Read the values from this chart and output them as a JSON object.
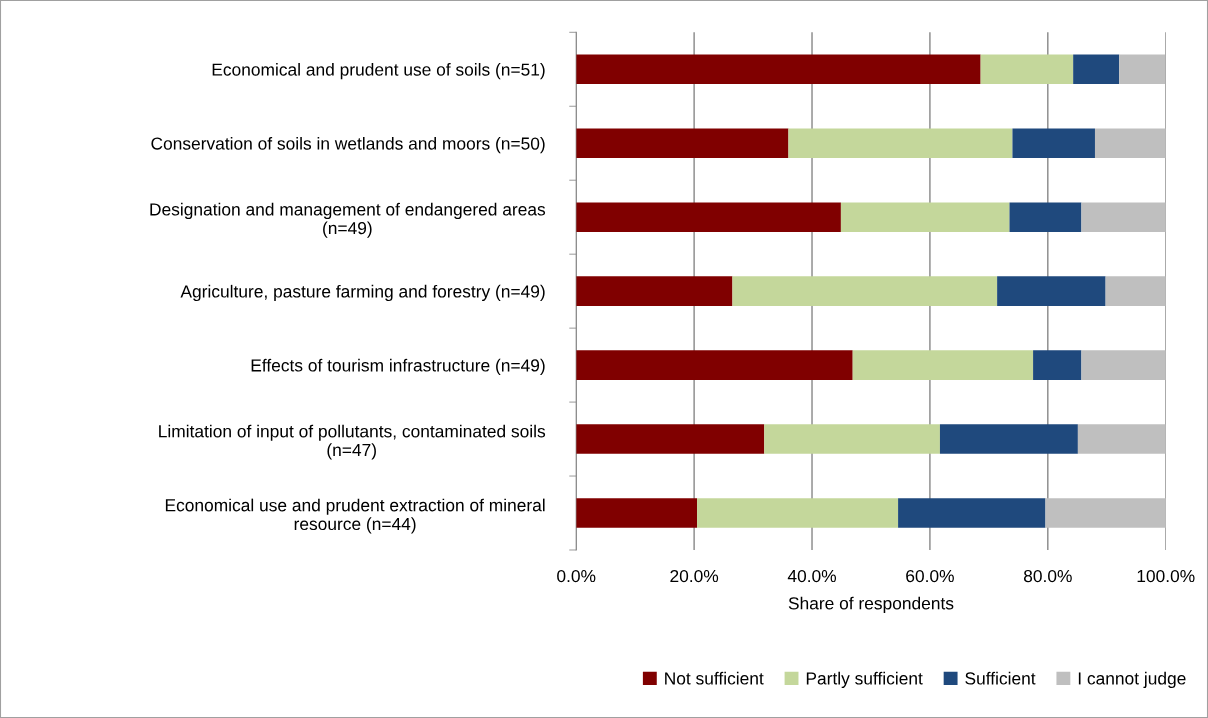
{
  "chart_data": {
    "type": "bar",
    "orientation": "horizontal",
    "stacked": true,
    "xlabel": "Share of respondents",
    "categories": [
      "Economical and prudent use of soils (n=51)",
      "Conservation of soils in wetlands and moors (n=50)",
      "Designation and management of endangered areas\n(n=49)",
      "Agriculture, pasture farming and forestry (n=49)",
      "Effects of tourism infrastructure (n=49)",
      "Limitation of input of pollutants, contaminated soils\n(n=47)",
      "Economical use and prudent extraction of mineral\nresource (n=44)"
    ],
    "series": [
      {
        "name": "Not sufficient",
        "color": "#800000",
        "values": [
          68.6,
          36.0,
          44.9,
          26.5,
          46.9,
          31.9,
          20.5
        ]
      },
      {
        "name": "Partly sufficient",
        "color": "#c4d79b",
        "values": [
          15.7,
          38.0,
          28.6,
          44.9,
          30.6,
          29.8,
          34.1
        ]
      },
      {
        "name": "Sufficient",
        "color": "#1f497d",
        "values": [
          7.8,
          14.0,
          12.2,
          18.4,
          8.2,
          23.4,
          25.0
        ]
      },
      {
        "name": "I cannot judge",
        "color": "#bfbfbf",
        "values": [
          7.8,
          12.0,
          14.3,
          10.2,
          14.3,
          14.9,
          20.5
        ]
      }
    ],
    "xlim": [
      0,
      100
    ],
    "xticks": [
      {
        "value": 0,
        "label": "0.0%"
      },
      {
        "value": 20,
        "label": "20.0%"
      },
      {
        "value": 40,
        "label": "40.0%"
      },
      {
        "value": 60,
        "label": "60.0%"
      },
      {
        "value": 80,
        "label": "80.0%"
      },
      {
        "value": 100,
        "label": "100.0%"
      }
    ],
    "grid": "x",
    "legend": "bottom"
  }
}
